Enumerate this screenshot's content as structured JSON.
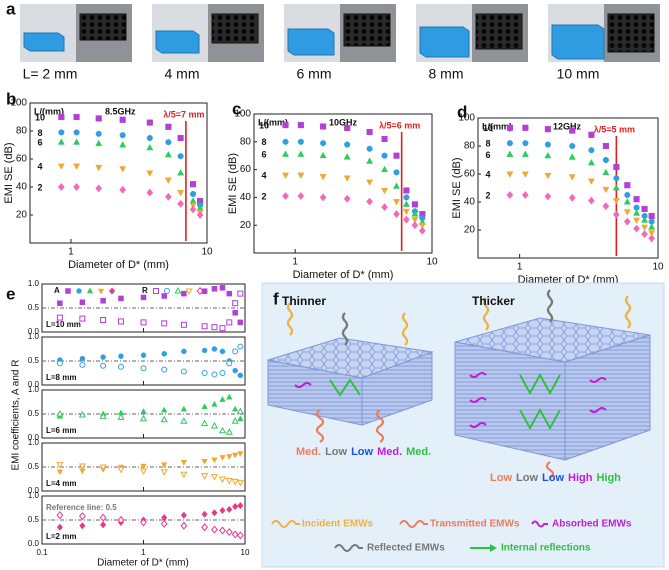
{
  "panel_labels": [
    "a",
    "b",
    "c",
    "d",
    "e",
    "f"
  ],
  "photos": {
    "labels": [
      "L= 2 mm",
      "4 mm",
      "6 mm",
      "8 mm",
      "10 mm"
    ]
  },
  "panel_e": {
    "ylabel": "EMI coefficients, A and R",
    "xlabel": "Diameter of D* (mm)"
  },
  "chart_data": [
    {
      "type": "scatter",
      "x_scale": "log",
      "ylabel": "EMI SE (dB)",
      "xlabel": "Diameter of D* (mm)",
      "legend_title": "L/(mm)",
      "annotation": "8.5GHz",
      "lambda_label": "λ/5=7 mm",
      "lambda_x": 7,
      "x": [
        0.85,
        1.1,
        1.6,
        2.4,
        3.8,
        5.2,
        6.4,
        7.9,
        8.9
      ],
      "xlim": [
        0.5,
        10
      ],
      "xticks": [
        1,
        10
      ],
      "ylim": [
        0,
        100
      ],
      "yticks": [
        20,
        40,
        60,
        80,
        100
      ],
      "series": [
        {
          "name": "10",
          "color": "#b23fd6",
          "marker": "square",
          "values": [
            90,
            90,
            89,
            88,
            86,
            83,
            75,
            42,
            30
          ]
        },
        {
          "name": "8",
          "color": "#2f9fe0",
          "marker": "circle",
          "values": [
            79,
            79,
            78,
            77,
            75,
            72,
            62,
            35,
            27
          ]
        },
        {
          "name": "6",
          "color": "#2ecc5e",
          "marker": "triangle",
          "values": [
            72,
            72,
            71,
            70,
            68,
            63,
            50,
            30,
            25
          ]
        },
        {
          "name": "4",
          "color": "#f0a830",
          "marker": "triangle-down",
          "values": [
            55,
            55,
            54,
            53,
            50,
            45,
            36,
            27,
            22
          ]
        },
        {
          "name": "2",
          "color": "#f06ab8",
          "marker": "diamond",
          "values": [
            40,
            40,
            39,
            38,
            36,
            33,
            28,
            24,
            20
          ]
        }
      ]
    },
    {
      "type": "scatter",
      "x_scale": "log",
      "ylabel": "EMI SE (dB)",
      "xlabel": "Diameter of D* (mm)",
      "legend_title": "L/(mm)",
      "annotation": "10GHz",
      "lambda_label": "λ/5=6 mm",
      "lambda_x": 6,
      "x": [
        0.85,
        1.1,
        1.6,
        2.4,
        3.5,
        4.5,
        5.5,
        6.5,
        7.5,
        8.5
      ],
      "xlim": [
        0.5,
        10
      ],
      "xticks": [
        1,
        10
      ],
      "ylim": [
        0,
        100
      ],
      "yticks": [
        20,
        40,
        60,
        80,
        100
      ],
      "series": [
        {
          "name": "10",
          "color": "#b23fd6",
          "marker": "square",
          "values": [
            92,
            92,
            91,
            90,
            87,
            82,
            70,
            45,
            35,
            28
          ]
        },
        {
          "name": "8",
          "color": "#2f9fe0",
          "marker": "circle",
          "values": [
            80,
            80,
            79,
            78,
            75,
            70,
            58,
            40,
            30,
            25
          ]
        },
        {
          "name": "6",
          "color": "#2ecc5e",
          "marker": "triangle",
          "values": [
            71,
            71,
            70,
            69,
            66,
            60,
            48,
            35,
            28,
            22
          ]
        },
        {
          "name": "4",
          "color": "#f0a830",
          "marker": "triangle-down",
          "values": [
            56,
            56,
            55,
            54,
            51,
            45,
            37,
            30,
            24,
            20
          ]
        },
        {
          "name": "2",
          "color": "#f06ab8",
          "marker": "diamond",
          "values": [
            41,
            41,
            40,
            39,
            37,
            33,
            28,
            24,
            20,
            16
          ]
        }
      ]
    },
    {
      "type": "scatter",
      "x_scale": "log",
      "ylabel": "EMI SE (dB)",
      "xlabel": "Diameter of D* (mm)",
      "legend_title": "L/(mm)",
      "annotation": "12GHz",
      "lambda_label": "λ/5=5 mm",
      "lambda_x": 5,
      "x": [
        0.85,
        1.1,
        1.6,
        2.4,
        3.3,
        4.2,
        5,
        6,
        7,
        8,
        9
      ],
      "xlim": [
        0.5,
        10
      ],
      "xticks": [
        1,
        10
      ],
      "ylim": [
        0,
        100
      ],
      "yticks": [
        20,
        40,
        60,
        80,
        100
      ],
      "series": [
        {
          "name": "10",
          "color": "#b23fd6",
          "marker": "square",
          "values": [
            93,
            93,
            92,
            91,
            88,
            80,
            65,
            52,
            42,
            35,
            30
          ]
        },
        {
          "name": "8",
          "color": "#2f9fe0",
          "marker": "circle",
          "values": [
            82,
            82,
            81,
            80,
            77,
            70,
            57,
            45,
            36,
            30,
            26
          ]
        },
        {
          "name": "6",
          "color": "#2ecc5e",
          "marker": "triangle",
          "values": [
            74,
            74,
            73,
            72,
            68,
            61,
            50,
            40,
            32,
            27,
            22
          ]
        },
        {
          "name": "4",
          "color": "#f0a830",
          "marker": "triangle-down",
          "values": [
            60,
            60,
            59,
            58,
            55,
            49,
            41,
            33,
            27,
            22,
            18
          ]
        },
        {
          "name": "2",
          "color": "#f06ab8",
          "marker": "diamond",
          "values": [
            45,
            45,
            44,
            43,
            41,
            37,
            31,
            26,
            21,
            17,
            14
          ]
        }
      ]
    },
    {
      "type": "scatter",
      "x_scale": "log",
      "label": "L=10 mm",
      "reference_line": 0.5,
      "x": [
        0.15,
        0.25,
        0.4,
        0.6,
        1,
        1.6,
        2.5,
        4,
        5,
        6,
        7,
        8,
        9
      ],
      "xlim": [
        0.1,
        10
      ],
      "xticks": [
        0.1,
        1,
        10
      ],
      "ylim": [
        0,
        1
      ],
      "yticks": [
        {
          "value": 0,
          "label": "0.0"
        },
        {
          "value": 0.5,
          "label": "0.5"
        },
        {
          "value": 1,
          "label": "1.0"
        }
      ],
      "series": [
        {
          "name": "A",
          "color": "#b23fd6",
          "marker": "square",
          "filled": true,
          "values": [
            0.6,
            0.62,
            0.65,
            0.7,
            0.72,
            0.75,
            0.8,
            0.85,
            0.9,
            0.92,
            0.8,
            0.4,
            0.2
          ]
        },
        {
          "name": "R",
          "color": "#b23fd6",
          "marker": "square",
          "filled": false,
          "values": [
            0.3,
            0.28,
            0.25,
            0.22,
            0.2,
            0.18,
            0.15,
            0.12,
            0.1,
            0.08,
            0.2,
            0.6,
            0.8
          ]
        }
      ]
    },
    {
      "type": "scatter",
      "x_scale": "log",
      "label": "L=8 mm",
      "reference_line": 0.5,
      "x": [
        0.15,
        0.25,
        0.4,
        0.6,
        1,
        1.6,
        2.5,
        4,
        5,
        6,
        7,
        8,
        9
      ],
      "xlim": [
        0.1,
        10
      ],
      "xticks": [
        0.1,
        1,
        10
      ],
      "ylim": [
        0,
        1
      ],
      "yticks": [
        {
          "value": 0,
          "label": "0.0"
        },
        {
          "value": 0.5,
          "label": "0.5"
        },
        {
          "value": 1,
          "label": "1.0"
        }
      ],
      "series": [
        {
          "color": "#2f9fe0",
          "marker": "circle",
          "filled": true,
          "values": [
            0.52,
            0.55,
            0.58,
            0.6,
            0.62,
            0.65,
            0.7,
            0.72,
            0.75,
            0.7,
            0.5,
            0.3,
            0.2
          ]
        },
        {
          "color": "#2f9fe0",
          "marker": "circle",
          "filled": false,
          "values": [
            0.45,
            0.42,
            0.4,
            0.38,
            0.35,
            0.32,
            0.28,
            0.25,
            0.22,
            0.25,
            0.45,
            0.7,
            0.8
          ]
        }
      ]
    },
    {
      "type": "scatter",
      "x_scale": "log",
      "label": "L=6 mm",
      "reference_line": 0.5,
      "x": [
        0.15,
        0.25,
        0.4,
        0.6,
        1,
        1.6,
        2.5,
        4,
        5,
        6,
        7,
        8,
        9
      ],
      "xlim": [
        0.1,
        10
      ],
      "xticks": [
        0.1,
        1,
        10
      ],
      "ylim": [
        0,
        1
      ],
      "yticks": [
        {
          "value": 0,
          "label": "0.0"
        },
        {
          "value": 0.5,
          "label": "0.5"
        },
        {
          "value": 1,
          "label": "1.0"
        }
      ],
      "series": [
        {
          "color": "#2ecc5e",
          "marker": "triangle",
          "filled": true,
          "values": [
            0.45,
            0.48,
            0.5,
            0.52,
            0.55,
            0.58,
            0.6,
            0.65,
            0.7,
            0.8,
            0.85,
            0.6,
            0.4
          ]
        },
        {
          "color": "#2ecc5e",
          "marker": "triangle",
          "filled": false,
          "values": [
            0.5,
            0.48,
            0.45,
            0.43,
            0.4,
            0.38,
            0.35,
            0.3,
            0.25,
            0.15,
            0.12,
            0.35,
            0.55
          ]
        }
      ]
    },
    {
      "type": "scatter",
      "x_scale": "log",
      "label": "L=4 mm",
      "reference_line": 0.5,
      "x": [
        0.15,
        0.25,
        0.4,
        0.6,
        1,
        1.6,
        2.5,
        4,
        5,
        6,
        7,
        8,
        9
      ],
      "xlim": [
        0.1,
        10
      ],
      "xticks": [
        0.1,
        1,
        10
      ],
      "ylim": [
        0,
        1
      ],
      "yticks": [
        {
          "value": 0,
          "label": "0.0"
        },
        {
          "value": 0.5,
          "label": "0.5"
        },
        {
          "value": 1,
          "label": "1.0"
        }
      ],
      "series": [
        {
          "color": "#f0a830",
          "marker": "triangle-down",
          "filled": true,
          "values": [
            0.4,
            0.42,
            0.45,
            0.5,
            0.52,
            0.55,
            0.6,
            0.62,
            0.65,
            0.7,
            0.72,
            0.75,
            0.78
          ]
        },
        {
          "color": "#f0a830",
          "marker": "triangle-down",
          "filled": false,
          "values": [
            0.55,
            0.52,
            0.5,
            0.45,
            0.42,
            0.4,
            0.35,
            0.32,
            0.3,
            0.25,
            0.22,
            0.2,
            0.18
          ]
        }
      ]
    },
    {
      "type": "scatter",
      "x_scale": "log",
      "label": "L=2 mm",
      "reference_line": 0.5,
      "annotation": "Reference line: 0.5",
      "x": [
        0.15,
        0.25,
        0.4,
        0.6,
        1,
        1.6,
        2.5,
        4,
        5,
        6,
        7,
        8,
        9
      ],
      "xlim": [
        0.1,
        10
      ],
      "xticks": [
        0.1,
        1,
        10
      ],
      "ylim": [
        0,
        1
      ],
      "yticks": [
        {
          "value": 0,
          "label": "0.0"
        },
        {
          "value": 0.5,
          "label": "0.5"
        },
        {
          "value": 1,
          "label": "1.0"
        }
      ],
      "series": [
        {
          "color": "#e8388a",
          "marker": "diamond",
          "filled": true,
          "values": [
            0.35,
            0.38,
            0.4,
            0.45,
            0.5,
            0.55,
            0.6,
            0.62,
            0.65,
            0.7,
            0.72,
            0.78,
            0.8
          ]
        },
        {
          "color": "#e8388a",
          "marker": "diamond",
          "filled": false,
          "values": [
            0.6,
            0.58,
            0.55,
            0.5,
            0.45,
            0.42,
            0.38,
            0.35,
            0.3,
            0.28,
            0.25,
            0.2,
            0.18
          ]
        }
      ]
    }
  ],
  "diagram": {
    "panels": [
      {
        "title": "Thinner",
        "levels": [
          "Med.",
          "Low",
          "Low",
          "Med.",
          "Med."
        ]
      },
      {
        "title": "Thicker",
        "levels": [
          "Low",
          "Low",
          "Low",
          "High",
          "High"
        ]
      }
    ],
    "level_colors": [
      "#f07a5a",
      "#777777",
      "#1f4fe0",
      "#c020d0",
      "#30c040"
    ],
    "legend": [
      "Incident EMWs",
      "Transmitted EMWs",
      "Absorbed EMWs",
      "Reflected EMWs",
      "Internal reflections"
    ],
    "legend_colors": [
      "#f0b040",
      "#f07a5a",
      "#c020d0",
      "#777777",
      "#30c040"
    ]
  }
}
